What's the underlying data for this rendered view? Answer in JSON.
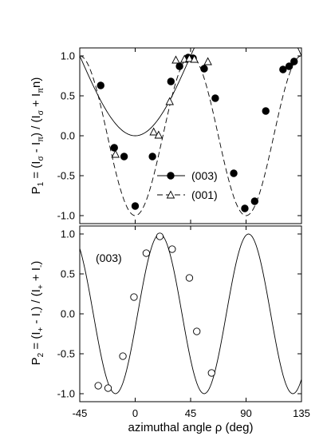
{
  "chart_data": [
    {
      "type": "scatter",
      "panel": "top",
      "xlabel": "",
      "ylabel_parts": {
        "lead": "P",
        "lead_sub": "1",
        "mid1": " = (I",
        "mid1_sub": "σ",
        "mid2": " - I",
        "mid2_sub": "π",
        "mid3": ") / (I",
        "mid3_sub": "σ",
        "mid4": " + I",
        "mid4_sub": "π",
        "tail": "n)"
      },
      "xlim": [
        -45,
        135
      ],
      "ylim": [
        -1.1,
        1.1
      ],
      "yticks": [
        "-1.0",
        "-0.5",
        "0.0",
        "0.5",
        "1.0"
      ],
      "ytick_values": [
        -1.0,
        -0.5,
        0.0,
        0.5,
        1.0
      ],
      "grid": false,
      "legend_position": "lower-right",
      "series": [
        {
          "name": "(003)",
          "marker": "filled-circle",
          "line": "solid",
          "x": [
            -28,
            -17,
            -9,
            0,
            14,
            29,
            36,
            43,
            47,
            56,
            65,
            80,
            89,
            97,
            106,
            120,
            125,
            129
          ],
          "y": [
            0.63,
            -0.15,
            -0.26,
            -0.88,
            -0.26,
            0.68,
            0.87,
            0.98,
            0.97,
            0.84,
            0.47,
            -0.47,
            -0.91,
            -0.82,
            0.31,
            0.83,
            0.87,
            0.93
          ]
        },
        {
          "name": "(001)",
          "marker": "open-triangle",
          "line": "dashed",
          "x": [
            -16,
            15,
            19,
            28,
            33,
            40,
            44,
            48,
            59
          ],
          "y": [
            -0.23,
            0.05,
            0.01,
            0.43,
            0.95,
            0.96,
            0.97,
            0.96,
            0.93
          ]
        }
      ]
    },
    {
      "type": "scatter",
      "panel": "bottom",
      "xlabel": "azimuthal angle ρ (deg)",
      "ylabel_parts": {
        "lead": "P",
        "lead_sub": "2",
        "mid1": " = (I",
        "mid1_sub": "+",
        "mid2": " - I",
        "mid2_sub": "-",
        "mid3": ") / (I",
        "mid3_sub": "+",
        "mid4": " + I",
        "mid4_sub": "-",
        "tail": ")"
      },
      "annotation": "(003)",
      "xlim": [
        -45,
        135
      ],
      "ylim": [
        -1.1,
        1.1
      ],
      "xticks": [
        "-45",
        "0",
        "45",
        "90",
        "135"
      ],
      "xtick_values": [
        -45,
        0,
        45,
        90,
        135
      ],
      "yticks": [
        "-1.0",
        "-0.5",
        "0.0",
        "0.5",
        "1.0"
      ],
      "ytick_values": [
        -1.0,
        -0.5,
        0.0,
        0.5,
        1.0
      ],
      "grid": false,
      "series": [
        {
          "name": "",
          "marker": "open-circle",
          "line": "solid",
          "x": [
            -30,
            -22,
            -10,
            -1,
            9,
            20,
            30,
            44,
            50,
            62
          ],
          "y": [
            -0.9,
            -0.93,
            -0.53,
            0.21,
            0.76,
            0.97,
            0.81,
            0.45,
            -0.22,
            -0.74
          ]
        }
      ]
    }
  ]
}
